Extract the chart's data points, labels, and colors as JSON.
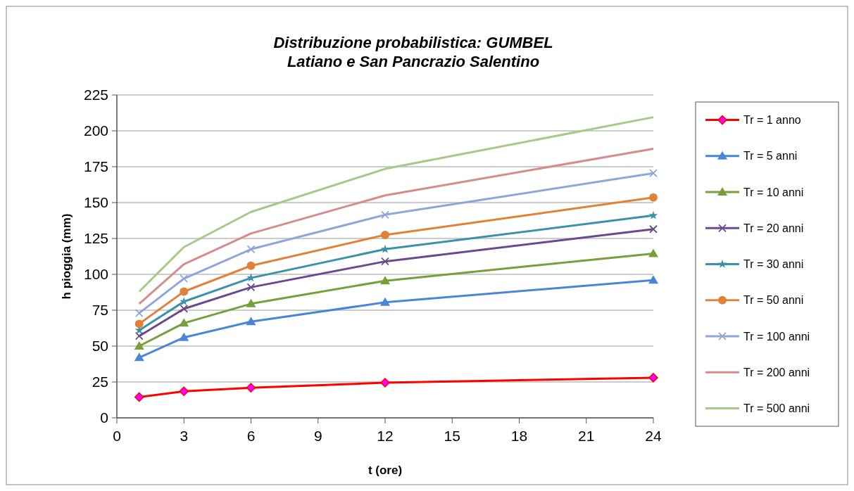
{
  "chart_data": {
    "type": "line",
    "title": "Distribuzione probabilistica:  GUMBEL\nLatiano  e San Pancrazio  Salentino",
    "xlabel": "t (ore)",
    "ylabel": "h pioggia (mm)",
    "x": [
      1,
      3,
      6,
      12,
      24
    ],
    "xlim": [
      0,
      24
    ],
    "xticks": [
      0,
      3,
      6,
      9,
      12,
      15,
      18,
      21,
      24
    ],
    "ylim": [
      0,
      225
    ],
    "yticks": [
      0,
      25,
      50,
      75,
      100,
      125,
      150,
      175,
      200,
      225
    ],
    "grid": "y",
    "legend": "right",
    "line_style": "solid",
    "series": [
      {
        "name": "Tr = 1 anno",
        "color": "#ff0000",
        "marker": "diamond",
        "values": [
          14.5,
          18.5,
          21,
          24.5,
          28
        ]
      },
      {
        "name": "Tr = 5 anni",
        "color": "#4a86d8",
        "marker": "triangle",
        "values": [
          42,
          56,
          67,
          80.5,
          96
        ]
      },
      {
        "name": "Tr = 10 anni",
        "color": "#77a03c",
        "marker": "triangle",
        "values": [
          50,
          66,
          79.5,
          95.5,
          114.5
        ]
      },
      {
        "name": "Tr = 20 anni",
        "color": "#6a4a8c",
        "marker": "cross",
        "values": [
          57,
          76,
          91,
          109,
          131.5
        ]
      },
      {
        "name": "Tr = 30 anni",
        "color": "#3a93a8",
        "marker": "star",
        "values": [
          61,
          81,
          97.5,
          117.5,
          141
        ]
      },
      {
        "name": "Tr = 50 anni",
        "color": "#e0823a",
        "marker": "circle",
        "values": [
          65.5,
          88,
          106,
          127.5,
          153.5
        ]
      },
      {
        "name": "Tr = 100 anni",
        "color": "#8ea8d6",
        "marker": "cross",
        "values": [
          73,
          97,
          117.5,
          141.5,
          170.5
        ]
      },
      {
        "name": "Tr = 200 anni",
        "color": "#d48c8c",
        "marker": "none",
        "values": [
          79.5,
          107,
          128.5,
          155,
          187.5
        ]
      },
      {
        "name": "Tr = 500 anni",
        "color": "#a8c88a",
        "marker": "none",
        "values": [
          88,
          119,
          143.5,
          173.5,
          209.5
        ]
      }
    ]
  }
}
